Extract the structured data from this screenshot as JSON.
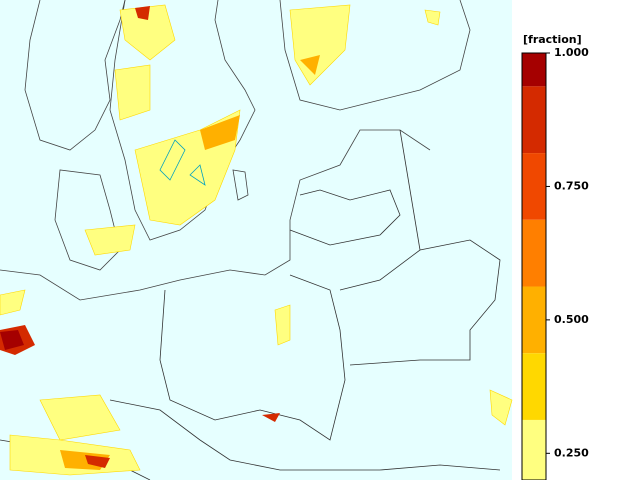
{
  "legend": {
    "title": "[fraction]",
    "ylim": [
      0.2,
      1.0
    ],
    "ticks": [
      {
        "value": 1.0,
        "label": "1.000"
      },
      {
        "value": 0.75,
        "label": "0.750"
      },
      {
        "value": 0.5,
        "label": "0.500"
      },
      {
        "value": 0.25,
        "label": "0.250"
      }
    ],
    "bands": [
      {
        "from": 0.9375,
        "to": 1.0,
        "color": "#a50000"
      },
      {
        "from": 0.8125,
        "to": 0.9375,
        "color": "#d42a00"
      },
      {
        "from": 0.6875,
        "to": 0.8125,
        "color": "#f04800"
      },
      {
        "from": 0.5625,
        "to": 0.6875,
        "color": "#ff7f00"
      },
      {
        "from": 0.4375,
        "to": 0.5625,
        "color": "#ffb000"
      },
      {
        "from": 0.3125,
        "to": 0.4375,
        "color": "#ffd800"
      },
      {
        "from": 0.2,
        "to": 0.3125,
        "color": "#ffff80"
      }
    ]
  }
}
